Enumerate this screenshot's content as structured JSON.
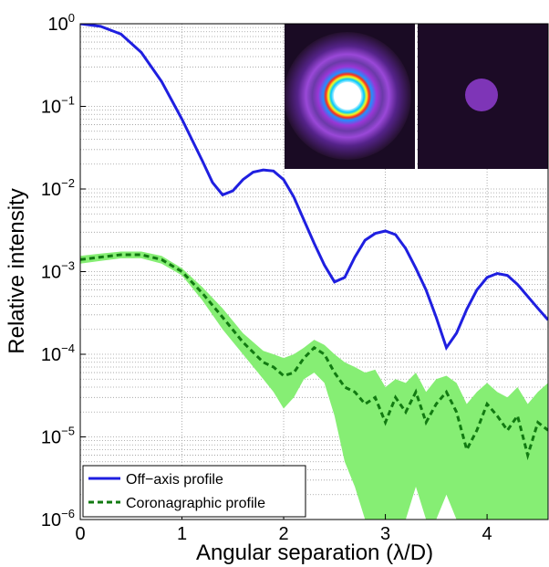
{
  "chart_data": {
    "type": "line",
    "xlabel": "Angular separation (λ/D)",
    "ylabel": "Relative intensity",
    "xlim": [
      0,
      4.6
    ],
    "ylim": [
      1e-06,
      1
    ],
    "yscale": "log",
    "grid": true,
    "legend_position": "bottom-left",
    "x_ticks": [
      "0",
      "1",
      "2",
      "3",
      "4"
    ],
    "y_ticks": [
      {
        "base": "10",
        "exp": "0"
      },
      {
        "base": "10",
        "exp": "−1"
      },
      {
        "base": "10",
        "exp": "−2"
      },
      {
        "base": "10",
        "exp": "−3"
      },
      {
        "base": "10",
        "exp": "−4"
      },
      {
        "base": "10",
        "exp": "−5"
      },
      {
        "base": "10",
        "exp": "−6"
      }
    ],
    "series": [
      {
        "name": "Off−axis profile",
        "color": "#1f1fe0",
        "style": "solid",
        "x": [
          0,
          0.2,
          0.4,
          0.6,
          0.8,
          1.0,
          1.2,
          1.3,
          1.4,
          1.5,
          1.6,
          1.7,
          1.8,
          1.9,
          2.0,
          2.1,
          2.2,
          2.3,
          2.4,
          2.5,
          2.6,
          2.7,
          2.8,
          2.9,
          3.0,
          3.1,
          3.2,
          3.3,
          3.4,
          3.5,
          3.6,
          3.7,
          3.8,
          3.9,
          4.0,
          4.1,
          4.2,
          4.3,
          4.4,
          4.5,
          4.6
        ],
        "y": [
          1.0,
          0.93,
          0.75,
          0.45,
          0.2,
          0.07,
          0.022,
          0.012,
          0.0085,
          0.0095,
          0.013,
          0.016,
          0.017,
          0.0165,
          0.013,
          0.008,
          0.0042,
          0.0022,
          0.0012,
          0.00075,
          0.00085,
          0.0015,
          0.0024,
          0.0029,
          0.0031,
          0.0028,
          0.0019,
          0.0011,
          0.0006,
          0.00028,
          0.00012,
          0.00018,
          0.00035,
          0.0006,
          0.00085,
          0.00095,
          0.0009,
          0.0007,
          0.0005,
          0.00036,
          0.00026
        ]
      },
      {
        "name": "Coronagraphic profile",
        "color": "#117a11",
        "style": "dashed",
        "band_color": "#86ee74",
        "x": [
          0,
          0.2,
          0.4,
          0.6,
          0.8,
          1.0,
          1.2,
          1.4,
          1.6,
          1.8,
          1.9,
          2.0,
          2.1,
          2.2,
          2.3,
          2.4,
          2.5,
          2.6,
          2.7,
          2.8,
          2.9,
          3.0,
          3.1,
          3.2,
          3.3,
          3.4,
          3.5,
          3.6,
          3.7,
          3.8,
          3.9,
          4.0,
          4.1,
          4.2,
          4.3,
          4.4,
          4.5,
          4.6
        ],
        "y": [
          0.0014,
          0.0015,
          0.0016,
          0.0016,
          0.0014,
          0.001,
          0.00055,
          0.00028,
          0.00014,
          8e-05,
          7e-05,
          5.5e-05,
          6e-05,
          9e-05,
          0.00012,
          0.0001,
          6e-05,
          4e-05,
          3.5e-05,
          2.5e-05,
          3e-05,
          1.5e-05,
          3e-05,
          2e-05,
          3.5e-05,
          1.5e-05,
          2.5e-05,
          3.5e-05,
          2e-05,
          7e-06,
          1.2e-05,
          2.5e-05,
          1.8e-05,
          1.2e-05,
          1.8e-05,
          6e-06,
          1.5e-05,
          1.2e-05
        ],
        "band_lower": [
          0.00125,
          0.00135,
          0.00145,
          0.00145,
          0.00125,
          0.0009,
          0.00045,
          0.0002,
          0.0001,
          5e-05,
          3.5e-05,
          2.2e-05,
          3e-05,
          5e-05,
          6e-05,
          4.5e-05,
          1.8e-05,
          5e-06,
          2.5e-06,
          1e-06,
          1e-06,
          1e-06,
          1e-06,
          1e-06,
          2.5e-06,
          1e-06,
          1e-06,
          2e-06,
          1e-06,
          1e-06,
          1e-06,
          1e-06,
          1e-06,
          1e-06,
          1e-06,
          1e-06,
          1e-06,
          1e-06
        ],
        "band_upper": [
          0.00155,
          0.00165,
          0.00175,
          0.00175,
          0.00155,
          0.0011,
          0.00065,
          0.00036,
          0.00018,
          0.00011,
          0.0001,
          9e-05,
          0.0001,
          0.00012,
          0.00015,
          0.00013,
          0.0001,
          8e-05,
          7e-05,
          6e-05,
          6.5e-05,
          4e-05,
          5e-05,
          4.5e-05,
          6e-05,
          3.5e-05,
          5e-05,
          5.5e-05,
          4.5e-05,
          2.5e-05,
          3.5e-05,
          4.5e-05,
          3.5e-05,
          3e-05,
          4e-05,
          2.5e-05,
          3.5e-05,
          4.5e-05
        ]
      }
    ]
  }
}
